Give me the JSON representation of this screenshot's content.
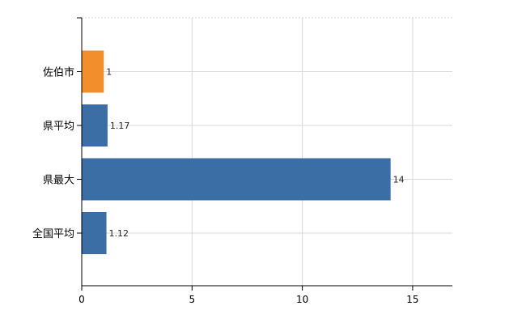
{
  "chart_data": {
    "type": "bar",
    "orientation": "horizontal",
    "categories": [
      "佐伯市",
      "県平均",
      "県最大",
      "全国平均"
    ],
    "values": [
      1,
      1.17,
      14,
      1.12
    ],
    "value_labels": [
      "1",
      "1.17",
      "14",
      "1.12"
    ],
    "bar_colors": [
      "#F28E2B",
      "#3A6EA5",
      "#3A6EA5",
      "#3A6EA5"
    ],
    "x_ticks": [
      0,
      5,
      10,
      15
    ],
    "x_tick_labels": [
      "0",
      "5",
      "10",
      "15"
    ],
    "xlim": [
      0,
      16.8
    ],
    "grid": true,
    "title": "",
    "xlabel": "",
    "ylabel": ""
  }
}
